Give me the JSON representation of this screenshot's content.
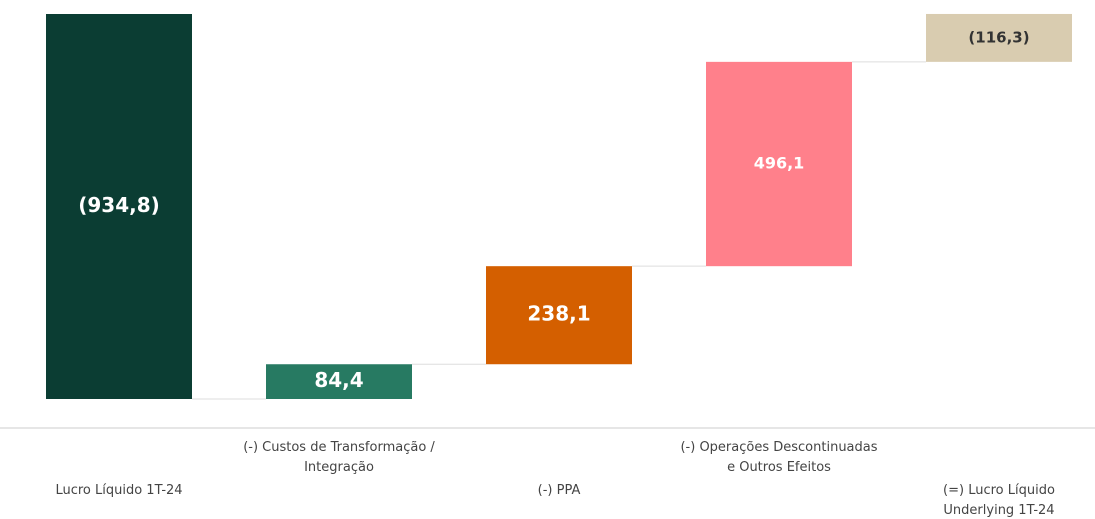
{
  "chart_data": {
    "type": "waterfall",
    "categories": [
      "Lucro Líquido 1T-24",
      "(-) Custos de Transformação /\nIntegração",
      "(-) PPA",
      "(-) Operações Descontinuadas\ne Outros Efeitos",
      "(=) Lucro Líquido\nUnderlying 1T-24"
    ],
    "values": [
      -934.8,
      84.4,
      238.1,
      496.1,
      -116.3
    ],
    "value_labels": [
      "(934,8)",
      "84,4",
      "238,1",
      "496,1",
      "(116,3)"
    ],
    "colors": [
      "#0b3d33",
      "#277a62",
      "#d45f00",
      "#ff808b",
      "#d9ccb0"
    ]
  }
}
